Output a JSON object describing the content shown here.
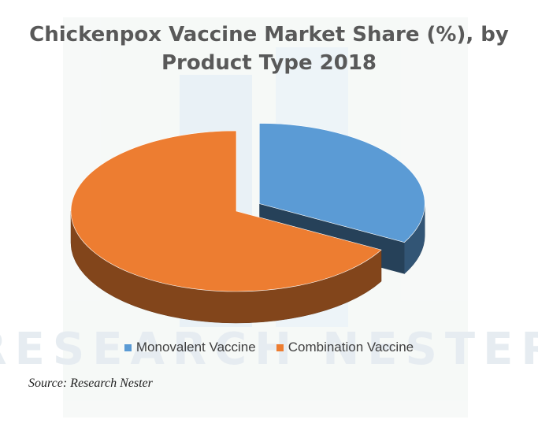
{
  "chart_data": {
    "type": "pie",
    "title": "Chickenpox Vaccine Market Share (%), by Product Type 2018",
    "categories": [
      "Monovalent Vaccine",
      "Combination Vaccine"
    ],
    "values": [
      33,
      67
    ],
    "colors": [
      "#5b9bd5",
      "#ed7d31"
    ],
    "legend_position": "bottom",
    "style": "3d-exploded"
  },
  "source_label": "Source: Research Nester",
  "watermark": "RESEARCH NESTER"
}
